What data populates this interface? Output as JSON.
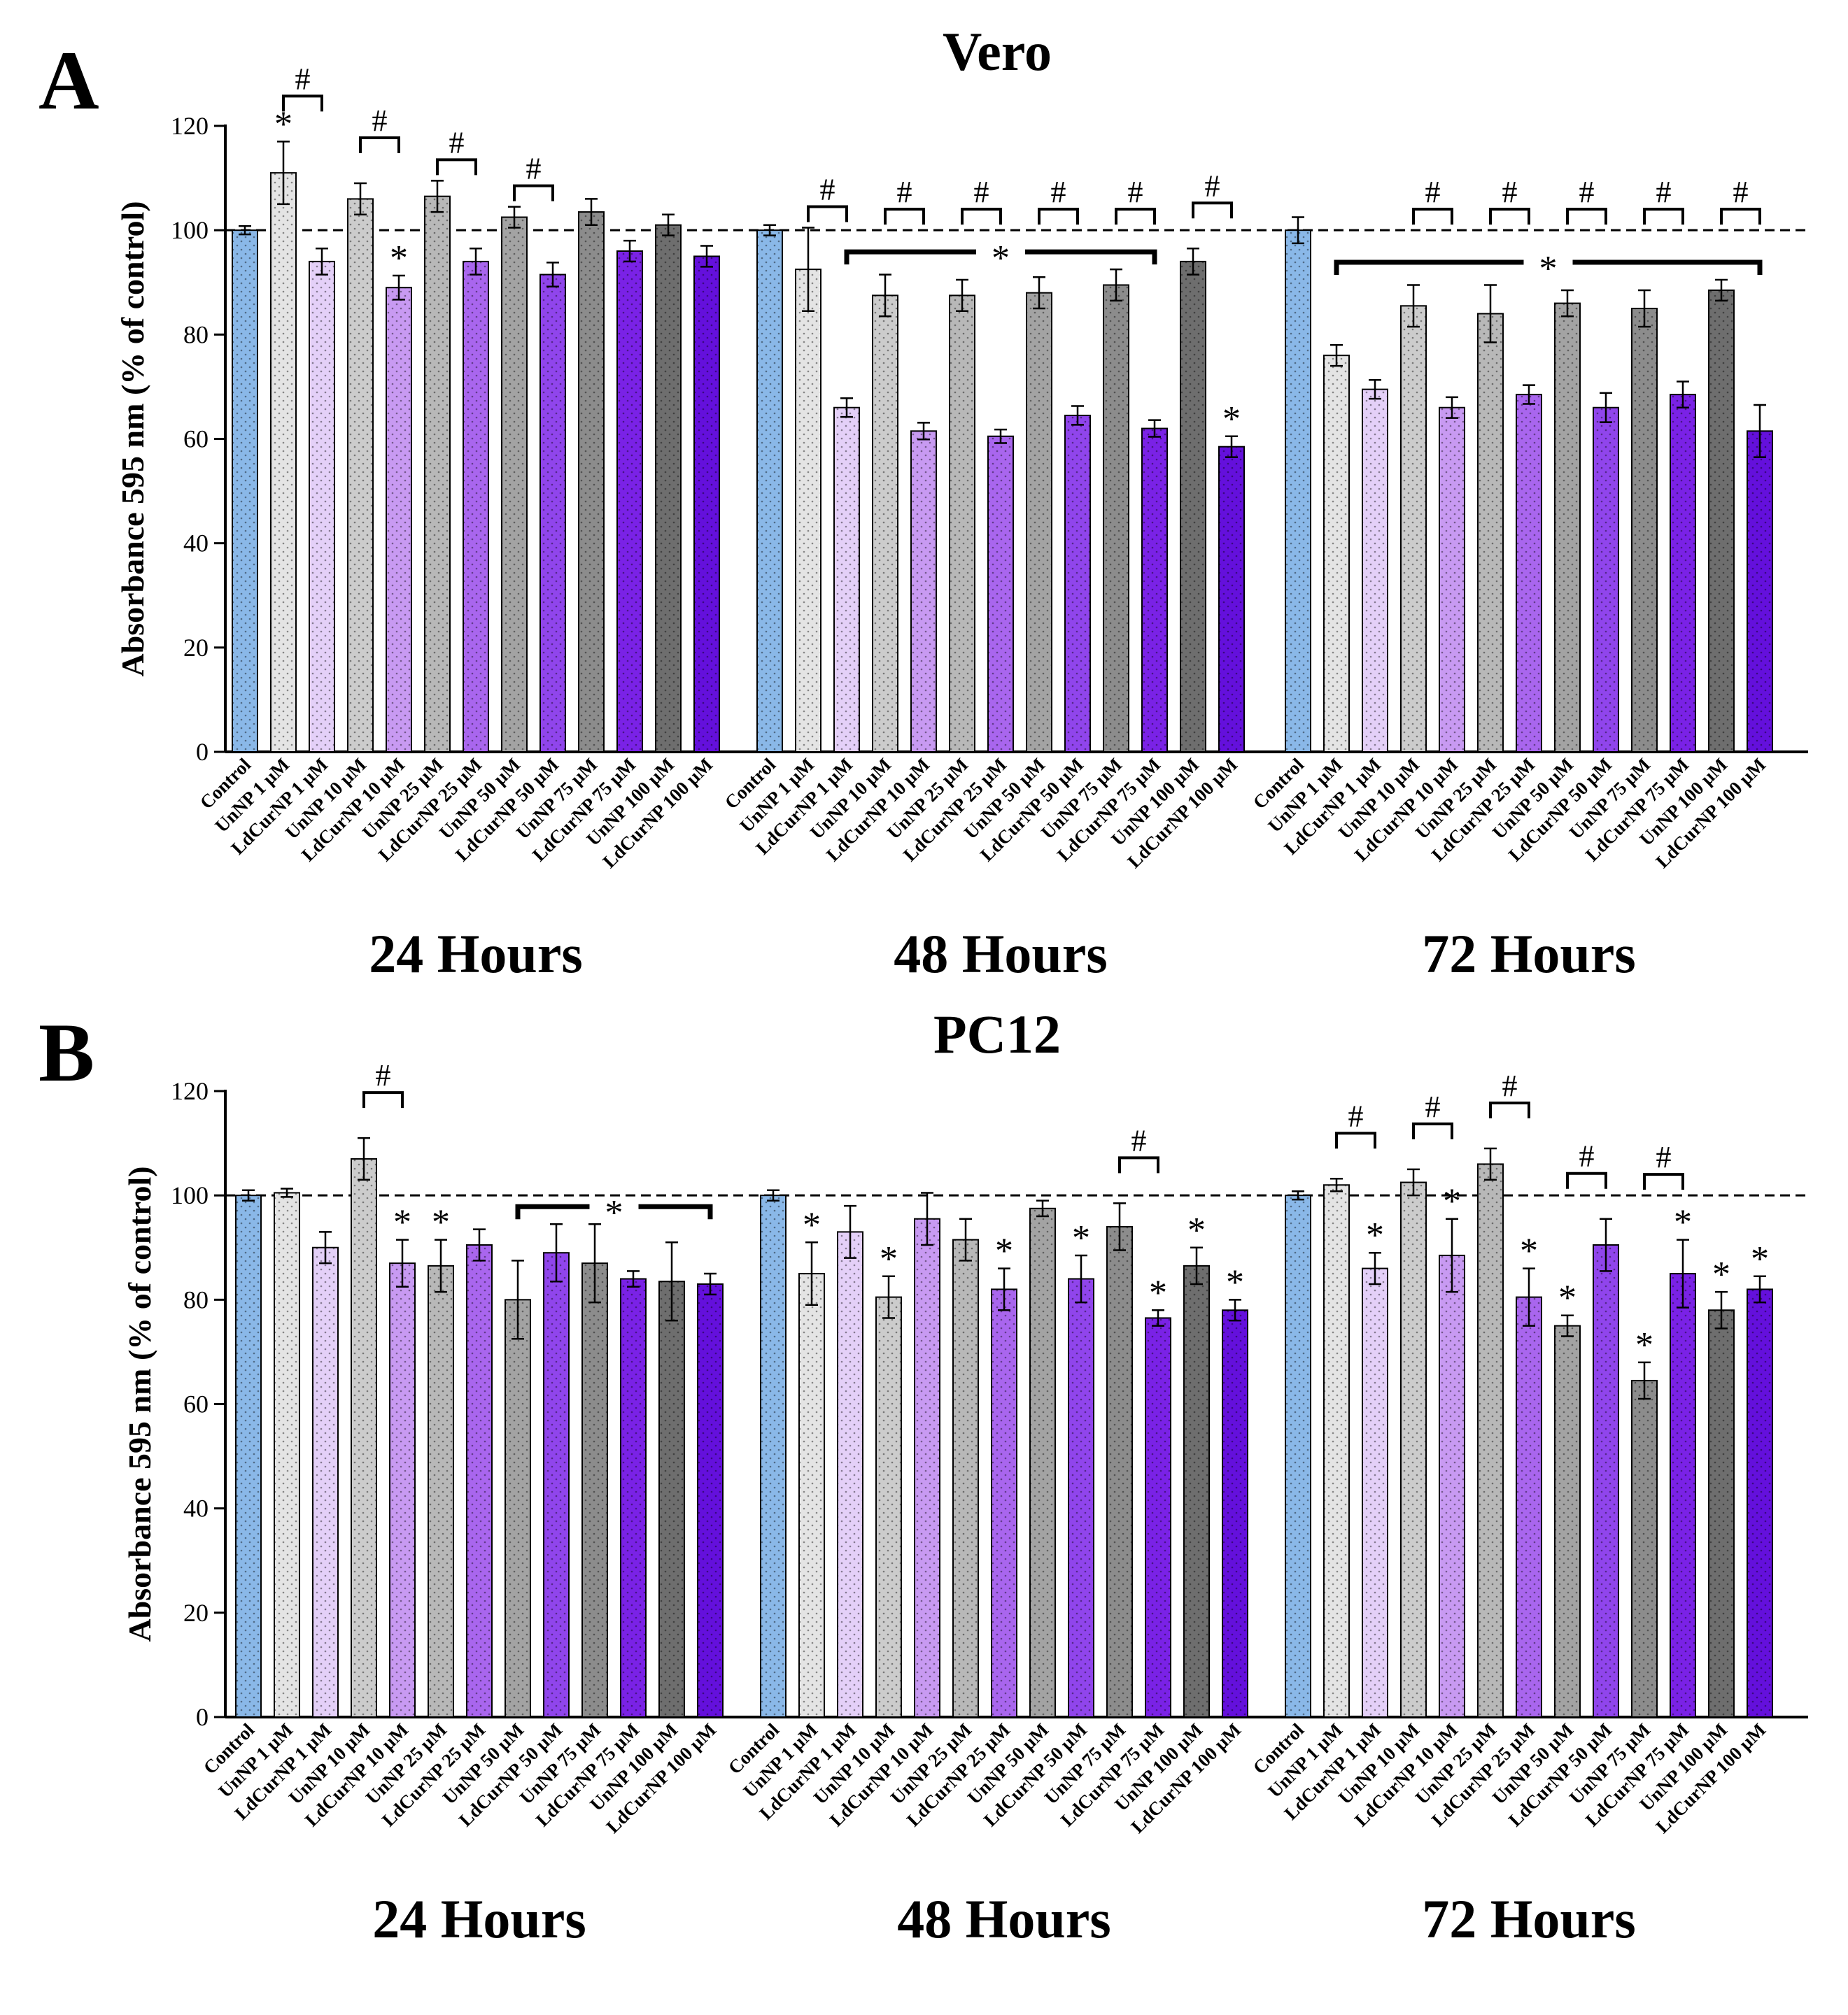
{
  "chart_data": [
    {
      "type": "bar",
      "panel_letter": "A",
      "title": "Vero",
      "ylabel": "Absorbance 595 nm (% of control)",
      "ylim": [
        0,
        120
      ],
      "yticks": [
        0,
        20,
        40,
        60,
        80,
        100,
        120
      ],
      "reference_line": 100,
      "grid": false,
      "legend": "none",
      "groups": [
        {
          "label": "24 Hours",
          "categories": [
            "Control",
            "UnNP 1 μM",
            "LdCurNP 1 μM",
            "UnNP 10 μM",
            "LdCurNP 10 μM",
            "UnNP 25 μM",
            "LdCurNP 25 μM",
            "UnNP 50 μM",
            "LdCurNP 50 μM",
            "UnNP 75 μM",
            "LdCurNP 75 μM",
            "UnNP 100 μM",
            "LdCurNP 100 μM"
          ],
          "values": [
            100,
            111,
            94,
            106,
            89,
            106.5,
            94,
            102.5,
            91.5,
            103.5,
            96,
            101,
            95
          ],
          "errors": [
            0.8,
            6,
            2.5,
            3,
            2.3,
            3,
            2.5,
            2,
            2.3,
            2.5,
            2,
            2,
            2
          ],
          "stars": [
            1,
            4
          ],
          "pair_hash": [
            [
              1,
              2
            ],
            [
              3,
              4
            ],
            [
              5,
              6
            ],
            [
              7,
              8
            ]
          ],
          "bracket_star": null
        },
        {
          "label": "48 Hours",
          "categories": [
            "Control",
            "UnNP 1 μM",
            "LdCurNP 1 μM",
            "UnNP 10 μM",
            "LdCurNP 10 μM",
            "UnNP 25 μM",
            "LdCurNP 25 μM",
            "UnNP 50 μM",
            "LdCurNP 50 μM",
            "UnNP 75 μM",
            "LdCurNP 75 μM",
            "UnNP 100 μM",
            "LdCurNP 100 μM"
          ],
          "values": [
            100,
            92.5,
            66,
            87.5,
            61.5,
            87.5,
            60.5,
            88,
            64.5,
            89.5,
            62,
            94,
            58.5
          ],
          "errors": [
            1,
            8,
            1.8,
            4,
            1.6,
            3,
            1.3,
            3,
            1.8,
            3,
            1.6,
            2.5,
            2
          ],
          "stars": [
            12
          ],
          "pair_hash": [
            [
              1,
              2
            ],
            [
              3,
              4
            ],
            [
              5,
              6
            ],
            [
              7,
              8
            ],
            [
              9,
              10
            ],
            [
              11,
              12
            ]
          ],
          "bracket_star": [
            2,
            10
          ]
        },
        {
          "label": "72 Hours",
          "categories": [
            "Control",
            "UnNP 1 μM",
            "LdCurNP 1 μM",
            "UnNP 10 μM",
            "LdCurNP 10 μM",
            "UnNP 25 μM",
            "LdCurNP 25 μM",
            "UnNP 50 μM",
            "LdCurNP 50 μM",
            "UnNP 75 μM",
            "LdCurNP 75 μM",
            "UnNP 100 μM",
            "LdCurNP 100 μM"
          ],
          "values": [
            100,
            76,
            69.5,
            85.5,
            66,
            84,
            68.5,
            86,
            66,
            85,
            68.5,
            88.5,
            61.5
          ],
          "errors": [
            2.5,
            2,
            1.8,
            4,
            2,
            5.5,
            1.8,
            2.5,
            2.8,
            3.5,
            2.5,
            2,
            5
          ],
          "stars": [],
          "pair_hash": [
            [
              3,
              4
            ],
            [
              5,
              6
            ],
            [
              7,
              8
            ],
            [
              9,
              10
            ],
            [
              11,
              12
            ]
          ],
          "bracket_star": [
            1,
            12
          ]
        }
      ]
    },
    {
      "type": "bar",
      "panel_letter": "B",
      "title": "PC12",
      "ylabel": "Absorbance 595 nm (% of control)",
      "ylim": [
        0,
        120
      ],
      "yticks": [
        0,
        20,
        40,
        60,
        80,
        100,
        120
      ],
      "reference_line": 100,
      "grid": false,
      "legend": "none",
      "groups": [
        {
          "label": "24 Hours",
          "categories": [
            "Control",
            "UnNP 1 μM",
            "LdCurNP 1 μM",
            "UnNP 10 μM",
            "LdCurNP 10 μM",
            "UnNP 25 μM",
            "LdCurNP 25 μM",
            "UnNP 50 μM",
            "LdCurNP 50 μM",
            "UnNP 75 μM",
            "LdCurNP 75 μM",
            "UnNP 100 μM",
            "LdCurNP 100 μM"
          ],
          "values": [
            100,
            100.5,
            90,
            107,
            87,
            86.5,
            90.5,
            80,
            89,
            87,
            84,
            83.5,
            83
          ],
          "errors": [
            1,
            0.8,
            3,
            4,
            4.5,
            5,
            3,
            7.5,
            5.5,
            7.5,
            1.5,
            7.5,
            2
          ],
          "stars": [
            4,
            5
          ],
          "pair_hash": [
            [
              3,
              4
            ]
          ],
          "bracket_star": [
            7,
            12
          ]
        },
        {
          "label": "48 Hours",
          "categories": [
            "Control",
            "UnNP 1 μM",
            "LdCurNP 1 μM",
            "UnNP 10 μM",
            "LdCurNP 10 μM",
            "UnNP 25 μM",
            "LdCurNP 25 μM",
            "UnNP 50 μM",
            "LdCurNP 50 μM",
            "UnNP 75 μM",
            "LdCurNP 75 μM",
            "UnNP 100 μM",
            "LdCurNP 100 μM"
          ],
          "values": [
            100,
            85,
            93,
            80.5,
            95.5,
            91.5,
            82,
            97.5,
            84,
            94,
            76.5,
            86.5,
            78
          ],
          "errors": [
            1,
            6,
            5,
            4,
            5,
            4,
            4,
            1.5,
            4.5,
            4.5,
            1.5,
            3.5,
            2
          ],
          "stars": [
            1,
            3,
            6,
            8,
            10,
            11,
            12
          ],
          "pair_hash": [
            [
              9,
              10
            ]
          ],
          "bracket_star": null
        },
        {
          "label": "72 Hours",
          "categories": [
            "Control",
            "UnNP 1 μM",
            "LdCurNP 1 μM",
            "UnNP 10 μM",
            "LdCurNP 10 μM",
            "UnNP 25 μM",
            "LdCurNP 25 μM",
            "UnNP 50 μM",
            "LdCurNP 50 μM",
            "UnNP 75 μM",
            "LdCurNP 75 μM",
            "UnNP 100 μM",
            "LdCurNP 100 μM"
          ],
          "values": [
            100,
            102,
            86,
            102.5,
            88.5,
            106,
            80.5,
            75,
            90.5,
            64.5,
            85,
            78,
            82
          ],
          "errors": [
            0.8,
            1.2,
            3,
            2.5,
            7,
            3,
            5.5,
            2,
            5,
            3.5,
            6.5,
            3.5,
            2.5
          ],
          "stars": [
            2,
            4,
            6,
            7,
            9,
            10,
            11,
            12
          ],
          "pair_hash": [
            [
              1,
              2
            ],
            [
              3,
              4
            ],
            [
              5,
              6
            ],
            [
              7,
              8
            ],
            [
              9,
              10
            ]
          ],
          "bracket_star": null
        }
      ]
    }
  ],
  "marks": {
    "hash": "#",
    "star": "*"
  },
  "colors": {
    "control": "#8ab8e8",
    "unnp": [
      "#e4e4e4",
      "#cccccc",
      "#b8b8b8",
      "#a3a3a3",
      "#8c8c8c",
      "#6e6e6e"
    ],
    "ldcurnp": [
      "#e4d0f8",
      "#c89af2",
      "#a966ee",
      "#9045ec",
      "#7a22e6",
      "#6410dc"
    ]
  }
}
